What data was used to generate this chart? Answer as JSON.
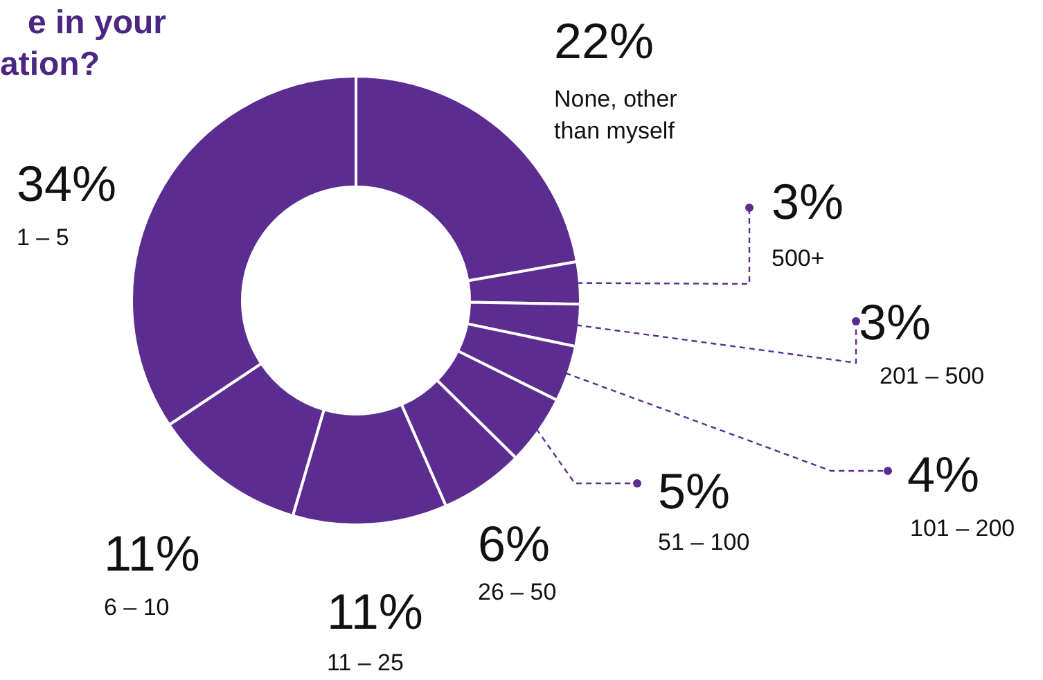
{
  "chart_data": {
    "type": "donut",
    "title": "e in your\nation?",
    "categories": [
      "None, other than myself",
      "500+",
      "201 – 500",
      "101 – 200",
      "51 – 100",
      "26 – 50",
      "11 – 25",
      "6 – 10",
      "1 – 5"
    ],
    "values": [
      22,
      3,
      3,
      4,
      5,
      6,
      11,
      11,
      34
    ],
    "value_labels": [
      "22%",
      "3%",
      "3%",
      "4%",
      "5%",
      "6%",
      "11%",
      "11%",
      "34%"
    ],
    "colors": [
      "#5c2d91",
      "#5c2d91",
      "#5c2d91",
      "#5c2d91",
      "#5c2d91",
      "#5c2d91",
      "#5c2d91",
      "#5c2d91",
      "#5c2d91"
    ]
  }
}
